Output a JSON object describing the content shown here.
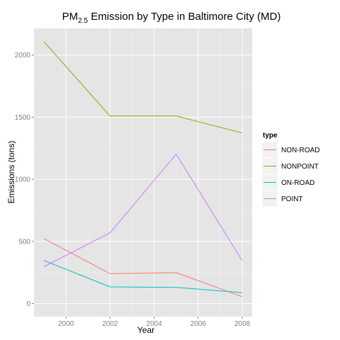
{
  "chart_data": {
    "type": "line",
    "title": {
      "prefix": "PM",
      "subscript": "2.5",
      "suffix": " Emission by Type in Baltimore City (MD)"
    },
    "xlabel": "Year",
    "ylabel": "Emissions (tons)",
    "x": [
      1999,
      2002,
      2005,
      2008
    ],
    "xlim": [
      1998.55,
      2008.45
    ],
    "ylim": [
      -105,
      2215
    ],
    "x_ticks": [
      2000,
      2002,
      2004,
      2006,
      2008
    ],
    "y_ticks": [
      0,
      500,
      1000,
      1500,
      2000
    ],
    "grid": true,
    "legend_position": "right",
    "legend_title": "type",
    "series": [
      {
        "name": "NON-ROAD",
        "color": "#F8766D",
        "values": [
          522.9,
          240.8,
          248.9,
          55.8
        ]
      },
      {
        "name": "NONPOINT",
        "color": "#7CAE00",
        "values": [
          2107.6,
          1509.5,
          1509.5,
          1373.2
        ]
      },
      {
        "name": "ON-ROAD",
        "color": "#00BFC4",
        "values": [
          346.8,
          134.3,
          130.4,
          88.3
        ]
      },
      {
        "name": "POINT",
        "color": "#C77CFF",
        "values": [
          296.8,
          569.3,
          1202.5,
          344.98
        ]
      }
    ]
  }
}
